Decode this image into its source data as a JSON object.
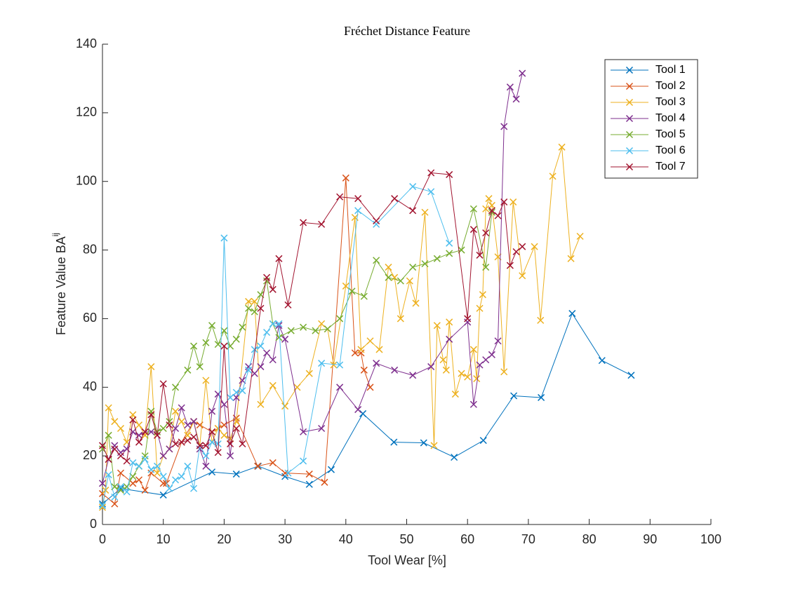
{
  "chart_data": {
    "type": "line",
    "title": "Fréchet Distance Feature",
    "xlabel": "Tool Wear [%]",
    "ylabel": "Feature Value BA",
    "ylabel_superscript": "ij",
    "xlim": [
      0,
      100
    ],
    "ylim": [
      0,
      140
    ],
    "xticks": [
      0,
      10,
      20,
      30,
      40,
      50,
      60,
      70,
      80,
      90,
      100
    ],
    "yticks": [
      0,
      20,
      40,
      60,
      80,
      100,
      120,
      140
    ],
    "marker": "x",
    "legend": "upper-right",
    "series": [
      {
        "name": "Tool 1",
        "color": "#0072BD",
        "x": [
          0,
          3,
          10,
          18,
          22,
          25.6,
          30,
          34,
          37.6,
          42.8,
          47.9,
          52.8,
          57.8,
          62.6,
          67.6,
          72.1,
          77.2,
          82.1,
          86.9
        ],
        "values": [
          6,
          10.5,
          8.6,
          15.3,
          14.7,
          17,
          14,
          11.7,
          16,
          32.3,
          24,
          23.8,
          19.6,
          24.5,
          37.5,
          37,
          61.5,
          47.8,
          43.5
        ]
      },
      {
        "name": "Tool 2",
        "color": "#D95319",
        "x": [
          0,
          2,
          3,
          5,
          6,
          7,
          8,
          10,
          10.5,
          13,
          15,
          16,
          18,
          19,
          20,
          22,
          25.5,
          28,
          30,
          34,
          36.5,
          40,
          41.5,
          42.5,
          43,
          44
        ],
        "values": [
          9,
          6,
          15,
          12,
          13,
          10,
          15,
          12,
          12,
          24,
          30,
          29,
          27,
          28,
          29,
          31,
          17,
          18,
          15,
          14.7,
          12.3,
          101,
          50,
          50,
          45,
          40
        ]
      },
      {
        "name": "Tool 3",
        "color": "#EDB120",
        "x": [
          0,
          0.5,
          1,
          2,
          3,
          4,
          5,
          6,
          7,
          8,
          9,
          10,
          11,
          12,
          13,
          14,
          15,
          16,
          17,
          18,
          19,
          20,
          21,
          22,
          24,
          25,
          26,
          28,
          30,
          32,
          34,
          36,
          37,
          38,
          40,
          41.5,
          42.5,
          44,
          45.5,
          47,
          48,
          49,
          50.5,
          51.5,
          53,
          54.5,
          55,
          56,
          56.5,
          57,
          58,
          59,
          60,
          61,
          61.5,
          62,
          62.5,
          63,
          63.5,
          64,
          65,
          66,
          67.5,
          69,
          71,
          72,
          74,
          75.5,
          77,
          78.5
        ],
        "values": [
          5,
          10,
          34,
          30,
          28,
          24,
          32,
          29,
          26,
          46,
          15,
          20,
          22,
          33,
          30,
          26,
          30,
          23,
          42,
          24,
          28,
          26,
          25,
          30,
          65,
          65,
          35,
          40.5,
          34.5,
          40,
          44,
          58.5,
          57,
          46.5,
          69.5,
          89.5,
          51,
          53.5,
          51,
          75,
          72,
          60,
          71,
          64.5,
          91,
          23,
          58,
          48,
          45,
          59,
          38,
          44,
          43,
          51,
          42.5,
          63,
          67,
          92,
          95,
          93,
          78,
          44.5,
          94,
          72.5,
          81,
          59.5,
          101.5,
          110,
          77.5,
          84
        ]
      },
      {
        "name": "Tool 4",
        "color": "#7E2F8E",
        "x": [
          0,
          1,
          2,
          3,
          4,
          5,
          6,
          7,
          8,
          9,
          10,
          11,
          12,
          13,
          14,
          15,
          16,
          17,
          18,
          19,
          20,
          21,
          22,
          23,
          24,
          25,
          26,
          27,
          28,
          29,
          30,
          33,
          36,
          39,
          42,
          45,
          48,
          51,
          54,
          57,
          60,
          61,
          62,
          63,
          64,
          65,
          66,
          67,
          68,
          69
        ],
        "values": [
          12,
          19,
          23,
          21,
          22,
          27,
          26,
          27,
          27,
          27,
          20,
          22,
          28,
          34,
          29,
          30,
          22,
          17,
          33,
          38,
          35,
          20,
          37,
          42,
          46,
          44,
          46,
          50,
          48,
          58,
          54,
          27,
          28,
          40,
          33.5,
          47,
          45,
          43.5,
          46,
          54,
          59,
          35,
          46.5,
          48,
          49.5,
          53.5,
          116,
          127.5,
          124,
          131.5
        ]
      },
      {
        "name": "Tool 5",
        "color": "#77AC30",
        "x": [
          0,
          1,
          2,
          3,
          4,
          5,
          6,
          7,
          8,
          9,
          10,
          11,
          12,
          14,
          15,
          16,
          17,
          18,
          19,
          20,
          21,
          22,
          23,
          24,
          25,
          26,
          27,
          28,
          29,
          31,
          33,
          35,
          37,
          39,
          41,
          43,
          45,
          47,
          49,
          51,
          53,
          55,
          57,
          59,
          61,
          63,
          64
        ],
        "values": [
          22,
          26,
          11,
          10,
          11,
          14,
          17,
          20,
          33,
          27,
          28,
          30,
          40,
          45,
          52,
          46,
          53,
          58,
          52.5,
          56.5,
          52,
          54,
          57.5,
          63,
          62,
          67,
          71,
          58.5,
          54.5,
          56.5,
          57.5,
          56.5,
          57,
          60,
          68,
          66.5,
          77,
          72,
          71,
          75,
          76,
          77.5,
          79,
          80,
          92,
          75,
          91
        ]
      },
      {
        "name": "Tool 6",
        "color": "#4DBEEE",
        "x": [
          0,
          1,
          2,
          3,
          4,
          5,
          6,
          7,
          8,
          9,
          10,
          11,
          12,
          13,
          14,
          15,
          16,
          17,
          18,
          19,
          20,
          21,
          22,
          23,
          24,
          25,
          26,
          27,
          28,
          29,
          30.5,
          33,
          36,
          39,
          42,
          45,
          51,
          54,
          57
        ],
        "values": [
          5.5,
          14.5,
          8,
          11,
          9.5,
          18,
          17,
          19,
          16,
          17,
          14,
          10.5,
          13,
          14,
          17,
          10.5,
          23,
          20,
          24,
          23.5,
          83.5,
          37,
          38.5,
          39,
          45,
          51,
          52,
          56,
          58.5,
          58.5,
          15,
          18.5,
          47,
          46.5,
          91.5,
          87.5,
          98.5,
          97,
          82
        ]
      },
      {
        "name": "Tool 7",
        "color": "#A2142F",
        "x": [
          0,
          1,
          2,
          3,
          4,
          5,
          6,
          7,
          8,
          9,
          10,
          11,
          12,
          13,
          14,
          15,
          16,
          17,
          18,
          19,
          20,
          21,
          22,
          23,
          26,
          27,
          28,
          29,
          30.5,
          33,
          36,
          39,
          42,
          45,
          48,
          51,
          54,
          57,
          60,
          61,
          62,
          63,
          64,
          65,
          66,
          67,
          68,
          69
        ],
        "values": [
          23,
          19,
          22,
          20,
          18.5,
          30.5,
          24,
          27,
          32,
          26,
          41,
          29,
          23.5,
          24,
          24.5,
          25.5,
          23,
          23,
          27,
          21,
          52,
          23.5,
          28,
          23.5,
          63,
          72,
          68.5,
          77.5,
          64,
          88,
          87.5,
          95.5,
          95,
          88.5,
          95,
          91.5,
          102.5,
          102,
          60,
          86,
          78.5,
          85,
          91.5,
          90,
          94,
          75.5,
          79.5,
          81
        ]
      }
    ]
  }
}
